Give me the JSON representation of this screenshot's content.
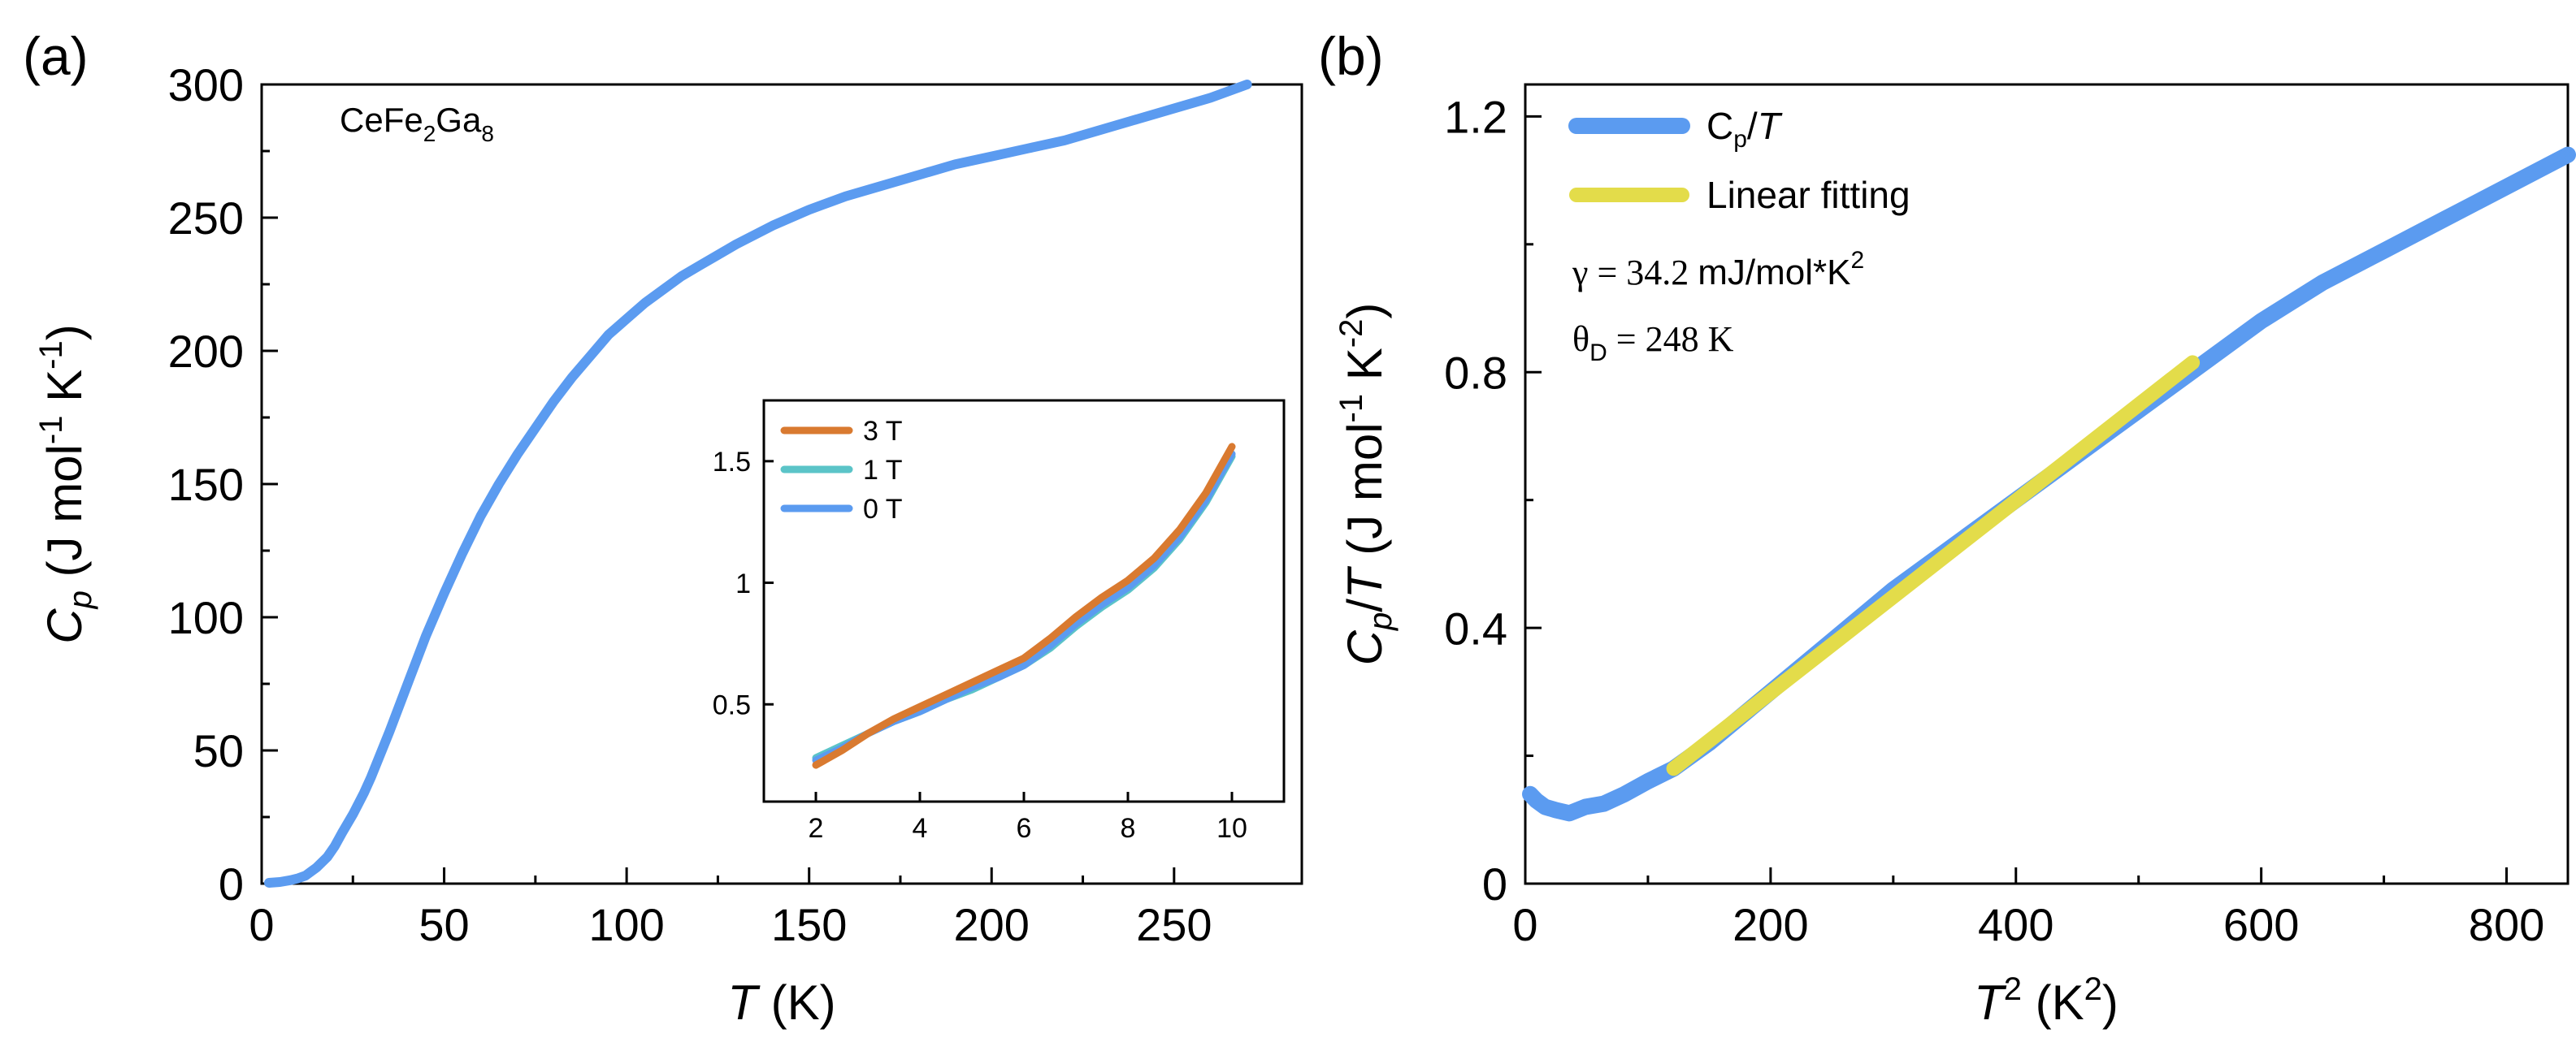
{
  "chart_data": [
    {
      "panel": "(a)",
      "type": "line",
      "annotation_text": "CeFe2Ga8",
      "annotation": {
        "base": "CeFe",
        "sub1": "2",
        "mid": "Ga",
        "sub2": "8"
      },
      "xlabel": {
        "italic": "T",
        "rest": " (K)"
      },
      "ylabel": {
        "c": "C",
        "sub": "p",
        "rest": " (J mol",
        "sup1": "-1",
        "mid": " K",
        "sup2": "-1",
        "close": ")"
      },
      "xlim": [
        0,
        285
      ],
      "ylim": [
        0,
        300
      ],
      "xticks": [
        0,
        50,
        100,
        150,
        200,
        250
      ],
      "yticks": [
        0,
        50,
        100,
        150,
        200,
        250,
        300
      ],
      "series": [
        {
          "name": "Cp",
          "color": "#5b9bf0",
          "x": [
            2,
            5,
            8,
            10,
            12,
            15,
            18,
            20,
            22,
            25,
            28,
            30,
            35,
            40,
            45,
            50,
            55,
            60,
            65,
            70,
            75,
            80,
            85,
            90,
            95,
            100,
            105,
            110,
            115,
            120,
            125,
            130,
            140,
            150,
            160,
            170,
            180,
            190,
            200,
            210,
            220,
            230,
            240,
            250,
            260,
            270
          ],
          "y": [
            0.3,
            0.6,
            1.3,
            2,
            3,
            6,
            10,
            14,
            19,
            26,
            34,
            40,
            57,
            75,
            93,
            109,
            124,
            138,
            150,
            161,
            171,
            181,
            190,
            198,
            206,
            212,
            218,
            223,
            228,
            232,
            236,
            240,
            247,
            253,
            258,
            262,
            266,
            270,
            273,
            276,
            279,
            283,
            287,
            291,
            295,
            300
          ]
        }
      ]
    },
    {
      "panel": "inset",
      "type": "line",
      "xlim": [
        1,
        11
      ],
      "ylim": [
        0.1,
        1.75
      ],
      "xticks": [
        2,
        4,
        6,
        8,
        10
      ],
      "yticks": [
        0.5,
        1,
        1.5
      ],
      "series": [
        {
          "name": "3 T",
          "color": "#d97a30",
          "x": [
            2,
            2.5,
            3,
            3.5,
            4,
            4.5,
            5,
            5.5,
            6,
            6.5,
            7,
            7.5,
            8,
            8.5,
            9,
            9.5,
            10
          ],
          "y": [
            0.25,
            0.31,
            0.38,
            0.44,
            0.49,
            0.54,
            0.59,
            0.64,
            0.69,
            0.77,
            0.86,
            0.94,
            1.01,
            1.1,
            1.22,
            1.37,
            1.56
          ]
        },
        {
          "name": "1 T",
          "color": "#5bc4c8",
          "x": [
            2,
            2.5,
            3,
            3.5,
            4,
            4.5,
            5,
            5.5,
            6,
            6.5,
            7,
            7.5,
            8,
            8.5,
            9,
            9.5,
            10
          ],
          "y": [
            0.28,
            0.33,
            0.38,
            0.43,
            0.47,
            0.52,
            0.56,
            0.61,
            0.66,
            0.73,
            0.82,
            0.9,
            0.97,
            1.06,
            1.18,
            1.33,
            1.52
          ]
        },
        {
          "name": "0 T",
          "color": "#5b9bf0",
          "x": [
            2,
            2.5,
            3,
            3.5,
            4,
            4.5,
            5,
            5.5,
            6,
            6.5,
            7,
            7.5,
            8,
            8.5,
            9,
            9.5,
            10
          ],
          "y": [
            0.27,
            0.32,
            0.38,
            0.43,
            0.47,
            0.52,
            0.57,
            0.61,
            0.66,
            0.74,
            0.83,
            0.91,
            0.98,
            1.07,
            1.19,
            1.34,
            1.53
          ]
        }
      ]
    },
    {
      "panel": "(b)",
      "type": "line",
      "xlabel": {
        "t": "T",
        "sup": "2",
        "rest": " (K",
        "sup2": "2",
        "close": ")"
      },
      "ylabel": {
        "c": "C",
        "sub": "p",
        "slash": "/",
        "t": "T",
        "rest": " (J mol",
        "sup1": "-1",
        "mid": " K",
        "sup2": "-2",
        "close": ")"
      },
      "xlim": [
        0,
        850
      ],
      "ylim": [
        0,
        1.25
      ],
      "xticks": [
        0,
        200,
        400,
        600,
        800
      ],
      "yticks": [
        0,
        0.4,
        0.8,
        1.2
      ],
      "legend_position": "top-left",
      "gamma_text": {
        "lead": "γ = 34.2 ",
        "unit": "mJ/mol*K",
        "sup": "2"
      },
      "theta_text": {
        "lead": "θ",
        "sub": "D",
        "rest": " = 248 K"
      },
      "series": [
        {
          "name": "Cp/T",
          "legend": {
            "c": "C",
            "sub": "p",
            "slash": "/",
            "t": "T"
          },
          "color": "#5b9bf0",
          "x": [
            4,
            9,
            16,
            25,
            36,
            49,
            64,
            81,
            100,
            121,
            150,
            200,
            250,
            300,
            350,
            400,
            450,
            500,
            550,
            600,
            650,
            700,
            750,
            800,
            850
          ],
          "y": [
            0.14,
            0.13,
            0.12,
            0.115,
            0.11,
            0.12,
            0.125,
            0.14,
            0.16,
            0.18,
            0.22,
            0.3,
            0.38,
            0.46,
            0.53,
            0.6,
            0.67,
            0.74,
            0.81,
            0.88,
            0.94,
            0.99,
            1.04,
            1.09,
            1.14
          ]
        },
        {
          "name": "Linear fitting",
          "legend": {
            "text": "Linear fitting"
          },
          "color": "#e3dc4a",
          "x": [
            121,
            544
          ],
          "y": [
            0.18,
            0.815
          ]
        }
      ]
    }
  ]
}
